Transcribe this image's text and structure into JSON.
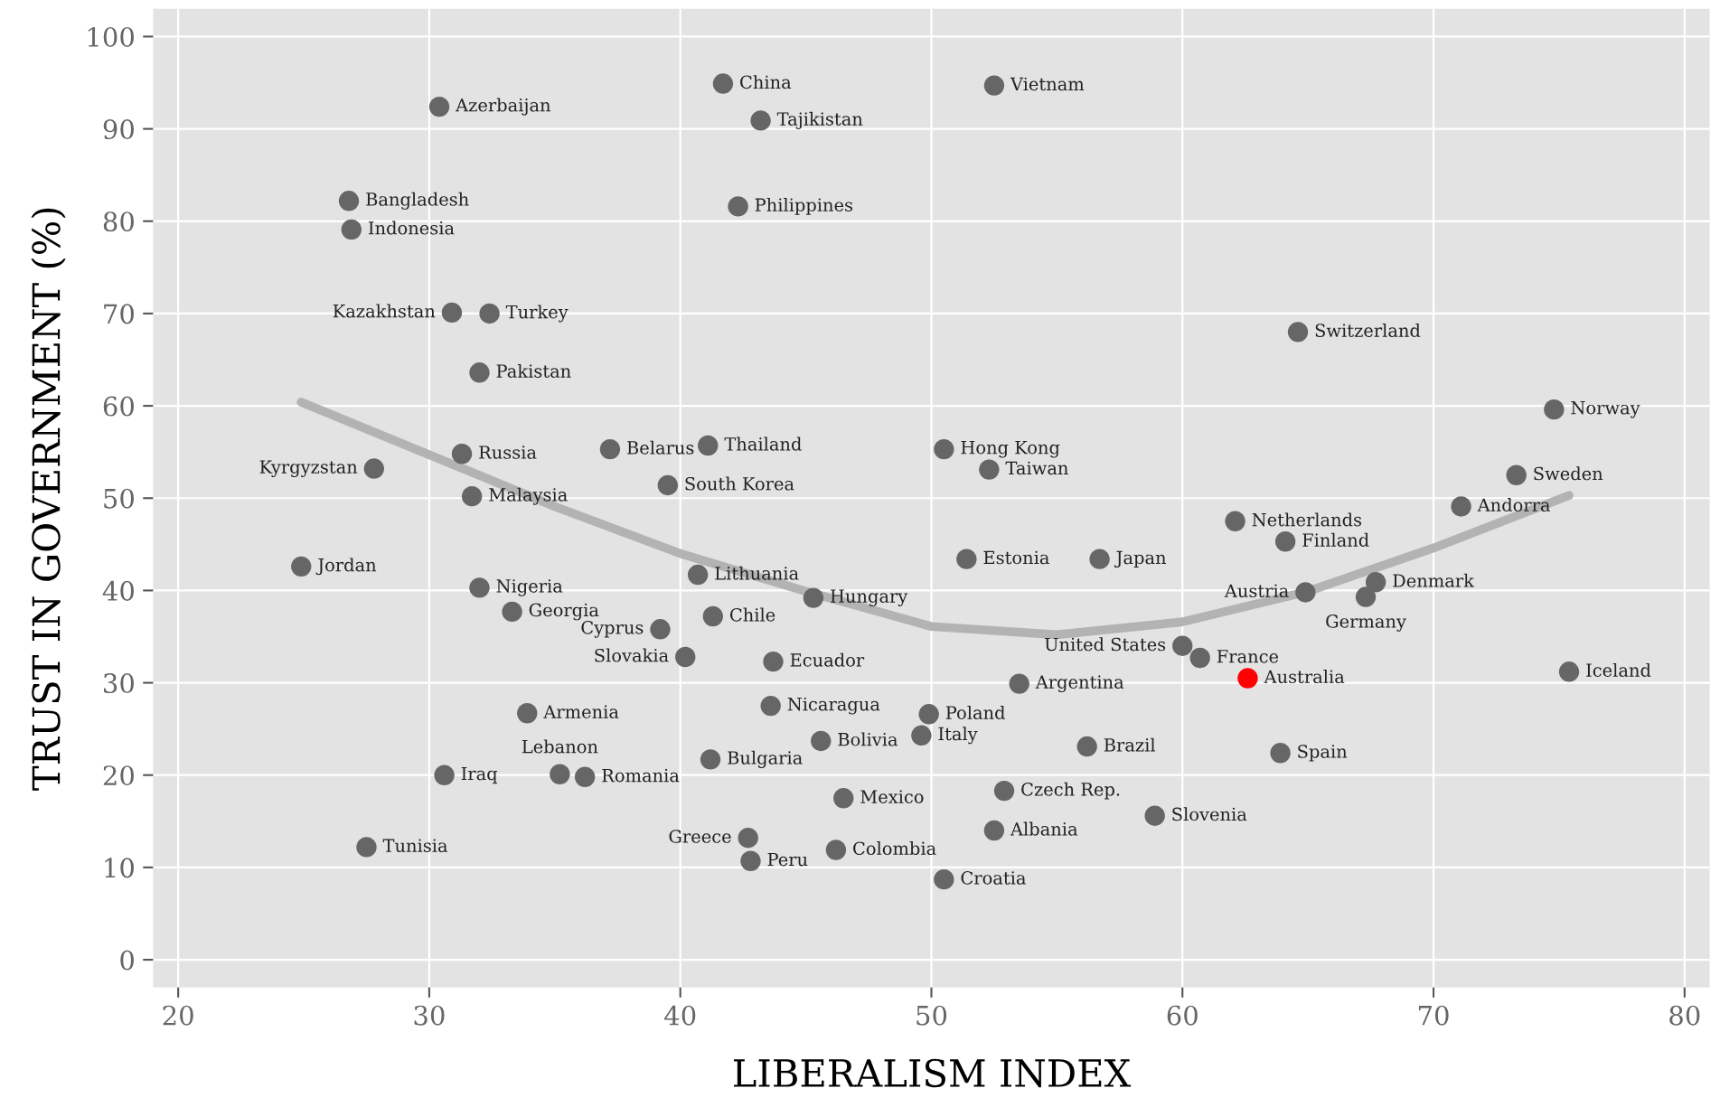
{
  "chart_data": {
    "type": "scatter",
    "xlabel": "LIBERALISM INDEX",
    "ylabel": "TRUST IN GOVERNMENT (%)",
    "xlim": [
      19,
      81
    ],
    "ylim": [
      -3,
      103
    ],
    "xticks": [
      20,
      30,
      40,
      50,
      60,
      70,
      80
    ],
    "yticks": [
      0,
      10,
      20,
      30,
      40,
      50,
      60,
      70,
      80,
      90,
      100
    ],
    "grid": true,
    "series": [
      {
        "marker": "circle",
        "colors": [
          "#666666",
          "#666666",
          "#666666",
          "#666666",
          "#666666",
          "#666666",
          "#666666",
          "#666666",
          "#666666",
          "#666666",
          "#666666",
          "#666666",
          "#666666",
          "#666666",
          "#666666",
          "#666666",
          "#666666",
          "#666666",
          "#666666",
          "#666666",
          "#666666",
          "#666666",
          "#666666",
          "#666666",
          "#666666",
          "#666666",
          "#666666",
          "#666666",
          "#666666",
          "#666666",
          "#666666",
          "#666666",
          "#666666",
          "#666666",
          "#666666",
          "#666666",
          "#666666",
          "#666666",
          "#666666",
          "#666666",
          "#ff0000",
          "#666666",
          "#666666",
          "#666666",
          "#666666",
          "#666666",
          "#666666",
          "#666666",
          "#666666",
          "#666666",
          "#666666",
          "#666666",
          "#666666",
          "#666666",
          "#666666",
          "#666666",
          "#666666",
          "#666666",
          "#666666",
          "#666666",
          "#666666",
          "#666666",
          "#666666"
        ],
        "x": [
          30.4,
          41.7,
          52.5,
          43.2,
          26.8,
          26.9,
          42.3,
          30.9,
          32.4,
          32.0,
          64.6,
          74.8,
          31.3,
          37.2,
          41.1,
          27.8,
          50.5,
          52.3,
          73.3,
          31.7,
          39.5,
          71.1,
          62.1,
          64.1,
          24.9,
          51.4,
          56.7,
          40.7,
          32.0,
          67.7,
          64.9,
          67.3,
          45.3,
          33.3,
          41.3,
          39.2,
          60.0,
          40.2,
          60.7,
          43.7,
          62.6,
          75.4,
          53.5,
          33.9,
          43.6,
          49.9,
          49.6,
          45.6,
          56.2,
          41.2,
          63.9,
          30.6,
          35.2,
          36.2,
          52.9,
          46.5,
          58.9,
          52.5,
          42.7,
          46.2,
          27.5,
          42.8,
          50.5
        ],
        "values": [
          92.4,
          94.9,
          94.7,
          90.9,
          82.2,
          79.1,
          81.6,
          70.1,
          70.0,
          63.6,
          68.0,
          59.6,
          54.8,
          55.3,
          55.7,
          53.2,
          55.3,
          53.1,
          52.5,
          50.2,
          51.4,
          49.1,
          47.5,
          45.3,
          42.6,
          43.4,
          43.4,
          41.7,
          40.3,
          40.9,
          39.8,
          39.3,
          39.2,
          37.7,
          37.2,
          35.8,
          34.0,
          32.8,
          32.7,
          32.3,
          30.5,
          31.2,
          29.9,
          26.7,
          27.5,
          26.6,
          24.3,
          23.7,
          23.1,
          21.7,
          22.4,
          20.0,
          20.1,
          19.8,
          18.3,
          17.5,
          15.6,
          14.0,
          13.2,
          11.9,
          12.2,
          10.7,
          8.7
        ]
      },
      {
        "type": "line",
        "color": "#b3b3b3",
        "x": [
          24.9,
          30,
          35,
          40,
          45,
          50,
          55,
          60,
          65,
          70,
          75.4
        ],
        "values": [
          60.4,
          54.7,
          49.1,
          44.0,
          39.9,
          36.1,
          35.2,
          36.6,
          39.9,
          44.6,
          50.3
        ]
      }
    ],
    "annotations": [
      {
        "text": "Azerbaijan",
        "x": 30.4,
        "y": 92.4
      },
      {
        "text": "China",
        "x": 41.7,
        "y": 94.9
      },
      {
        "text": "Vietnam",
        "x": 52.5,
        "y": 94.7
      },
      {
        "text": "Tajikistan",
        "x": 43.2,
        "y": 90.9
      },
      {
        "text": "Bangladesh",
        "x": 26.8,
        "y": 82.2
      },
      {
        "text": "Indonesia",
        "x": 26.9,
        "y": 79.1
      },
      {
        "text": "Philippines",
        "x": 42.3,
        "y": 81.6
      },
      {
        "text": "Kazakhstan",
        "x": 30.9,
        "y": 70.1
      },
      {
        "text": "Turkey",
        "x": 32.4,
        "y": 70.0
      },
      {
        "text": "Pakistan",
        "x": 32.0,
        "y": 63.6
      },
      {
        "text": "Switzerland",
        "x": 64.6,
        "y": 68.0
      },
      {
        "text": "Norway",
        "x": 74.8,
        "y": 59.6
      },
      {
        "text": "Russia",
        "x": 31.3,
        "y": 54.8
      },
      {
        "text": "Belarus",
        "x": 37.2,
        "y": 55.3
      },
      {
        "text": "Thailand",
        "x": 41.1,
        "y": 55.7
      },
      {
        "text": "Kyrgyzstan",
        "x": 27.8,
        "y": 53.2
      },
      {
        "text": "Hong Kong",
        "x": 50.5,
        "y": 55.3
      },
      {
        "text": "Taiwan",
        "x": 52.3,
        "y": 53.1
      },
      {
        "text": "Sweden",
        "x": 73.3,
        "y": 52.5
      },
      {
        "text": "Malaysia",
        "x": 31.7,
        "y": 50.2
      },
      {
        "text": "South Korea",
        "x": 39.5,
        "y": 51.4
      },
      {
        "text": "Andorra",
        "x": 71.1,
        "y": 49.1
      },
      {
        "text": "Netherlands",
        "x": 62.1,
        "y": 47.5
      },
      {
        "text": "Finland",
        "x": 64.1,
        "y": 45.3
      },
      {
        "text": "Jordan",
        "x": 24.9,
        "y": 42.6
      },
      {
        "text": "Estonia",
        "x": 51.4,
        "y": 43.4
      },
      {
        "text": "Japan",
        "x": 56.7,
        "y": 43.4
      },
      {
        "text": "Lithuania",
        "x": 40.7,
        "y": 41.7
      },
      {
        "text": "Nigeria",
        "x": 32.0,
        "y": 40.3
      },
      {
        "text": "Denmark",
        "x": 67.7,
        "y": 40.9
      },
      {
        "text": "Austria",
        "x": 64.9,
        "y": 39.8
      },
      {
        "text": "Germany",
        "x": 67.3,
        "y": 39.3
      },
      {
        "text": "Hungary",
        "x": 45.3,
        "y": 39.2
      },
      {
        "text": "Georgia",
        "x": 33.3,
        "y": 37.7
      },
      {
        "text": "Chile",
        "x": 41.3,
        "y": 37.2
      },
      {
        "text": "Cyprus",
        "x": 39.2,
        "y": 35.8
      },
      {
        "text": "United States",
        "x": 60.0,
        "y": 34.0
      },
      {
        "text": "Slovakia",
        "x": 40.2,
        "y": 32.8
      },
      {
        "text": "France",
        "x": 60.7,
        "y": 32.7
      },
      {
        "text": "Ecuador",
        "x": 43.7,
        "y": 32.3
      },
      {
        "text": "Australia",
        "x": 62.6,
        "y": 30.5
      },
      {
        "text": "Iceland",
        "x": 75.4,
        "y": 31.2
      },
      {
        "text": "Argentina",
        "x": 53.5,
        "y": 29.9
      },
      {
        "text": "Armenia",
        "x": 33.9,
        "y": 26.7
      },
      {
        "text": "Nicaragua",
        "x": 43.6,
        "y": 27.5
      },
      {
        "text": "Poland",
        "x": 49.9,
        "y": 26.6
      },
      {
        "text": "Italy",
        "x": 49.6,
        "y": 24.3
      },
      {
        "text": "Bolivia",
        "x": 45.6,
        "y": 23.7
      },
      {
        "text": "Brazil",
        "x": 56.2,
        "y": 23.1
      },
      {
        "text": "Bulgaria",
        "x": 41.2,
        "y": 21.7
      },
      {
        "text": "Spain",
        "x": 63.9,
        "y": 22.4
      },
      {
        "text": "Iraq",
        "x": 30.6,
        "y": 20.0
      },
      {
        "text": "Lebanon",
        "x": 35.2,
        "y": 20.1
      },
      {
        "text": "Romania",
        "x": 36.2,
        "y": 19.8
      },
      {
        "text": "Czech Rep.",
        "x": 52.9,
        "y": 18.3
      },
      {
        "text": "Mexico",
        "x": 46.5,
        "y": 17.5
      },
      {
        "text": "Slovenia",
        "x": 58.9,
        "y": 15.6
      },
      {
        "text": "Albania",
        "x": 52.5,
        "y": 14.0
      },
      {
        "text": "Greece",
        "x": 42.7,
        "y": 13.2
      },
      {
        "text": "Colombia",
        "x": 46.2,
        "y": 11.9
      },
      {
        "text": "Tunisia",
        "x": 27.5,
        "y": 12.2
      },
      {
        "text": "Peru",
        "x": 42.8,
        "y": 10.7
      },
      {
        "text": "Croatia",
        "x": 50.5,
        "y": 8.7
      }
    ]
  }
}
